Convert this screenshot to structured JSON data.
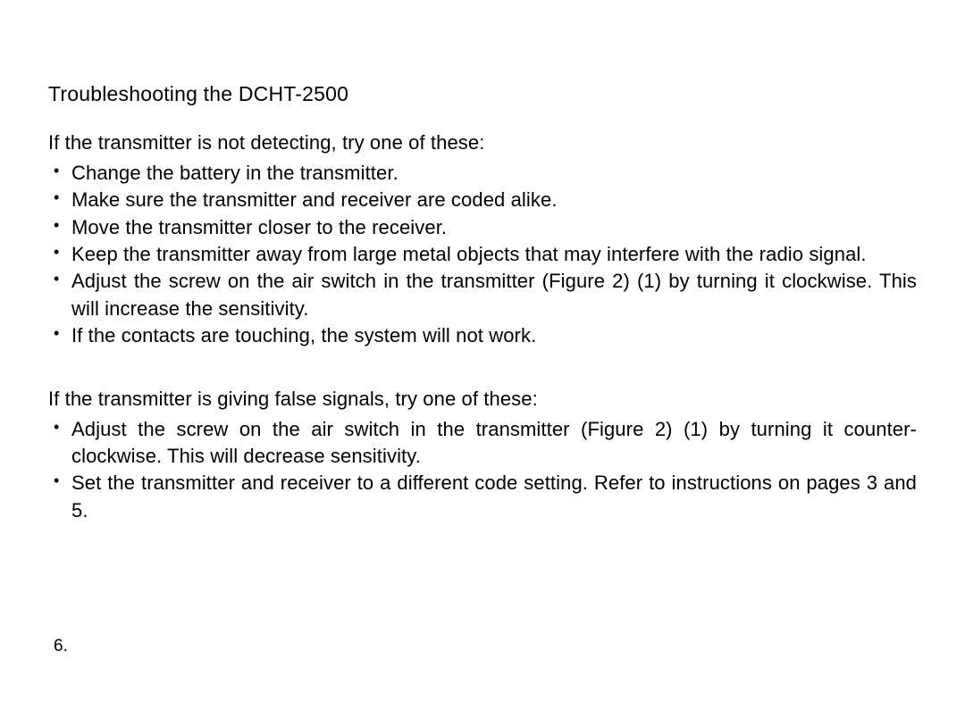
{
  "title": "Troubleshooting the DCHT-2500",
  "section1": {
    "intro": "If the transmitter is not detecting, try one of these:",
    "items": [
      "Change the battery in the transmitter.",
      "Make sure the transmitter and receiver are coded alike.",
      "Move the transmitter closer to the receiver.",
      "Keep the transmitter away from large metal objects that may interfere with the radio signal.",
      "Adjust the screw on the air switch in the transmitter (Figure 2) (1) by turning it clockwise. This will increase the sensitivity.",
      "If the contacts are touching, the system will not work."
    ]
  },
  "section2": {
    "intro": "If the transmitter is giving false signals, try one of these:",
    "items": [
      "Adjust the screw on the air switch in the transmitter (Figure 2) (1) by turning it counter-clockwise. This will decrease sensitivity.",
      "Set the transmitter and receiver to a different code setting. Refer to instructions on pages 3 and 5."
    ]
  },
  "pageNumber": "6.",
  "style": {
    "background_color": "#ffffff",
    "text_color": "#000000",
    "title_fontsize": 23,
    "body_fontsize": 22,
    "page_number_fontsize": 19,
    "font_family": "Arial, Helvetica, sans-serif"
  }
}
